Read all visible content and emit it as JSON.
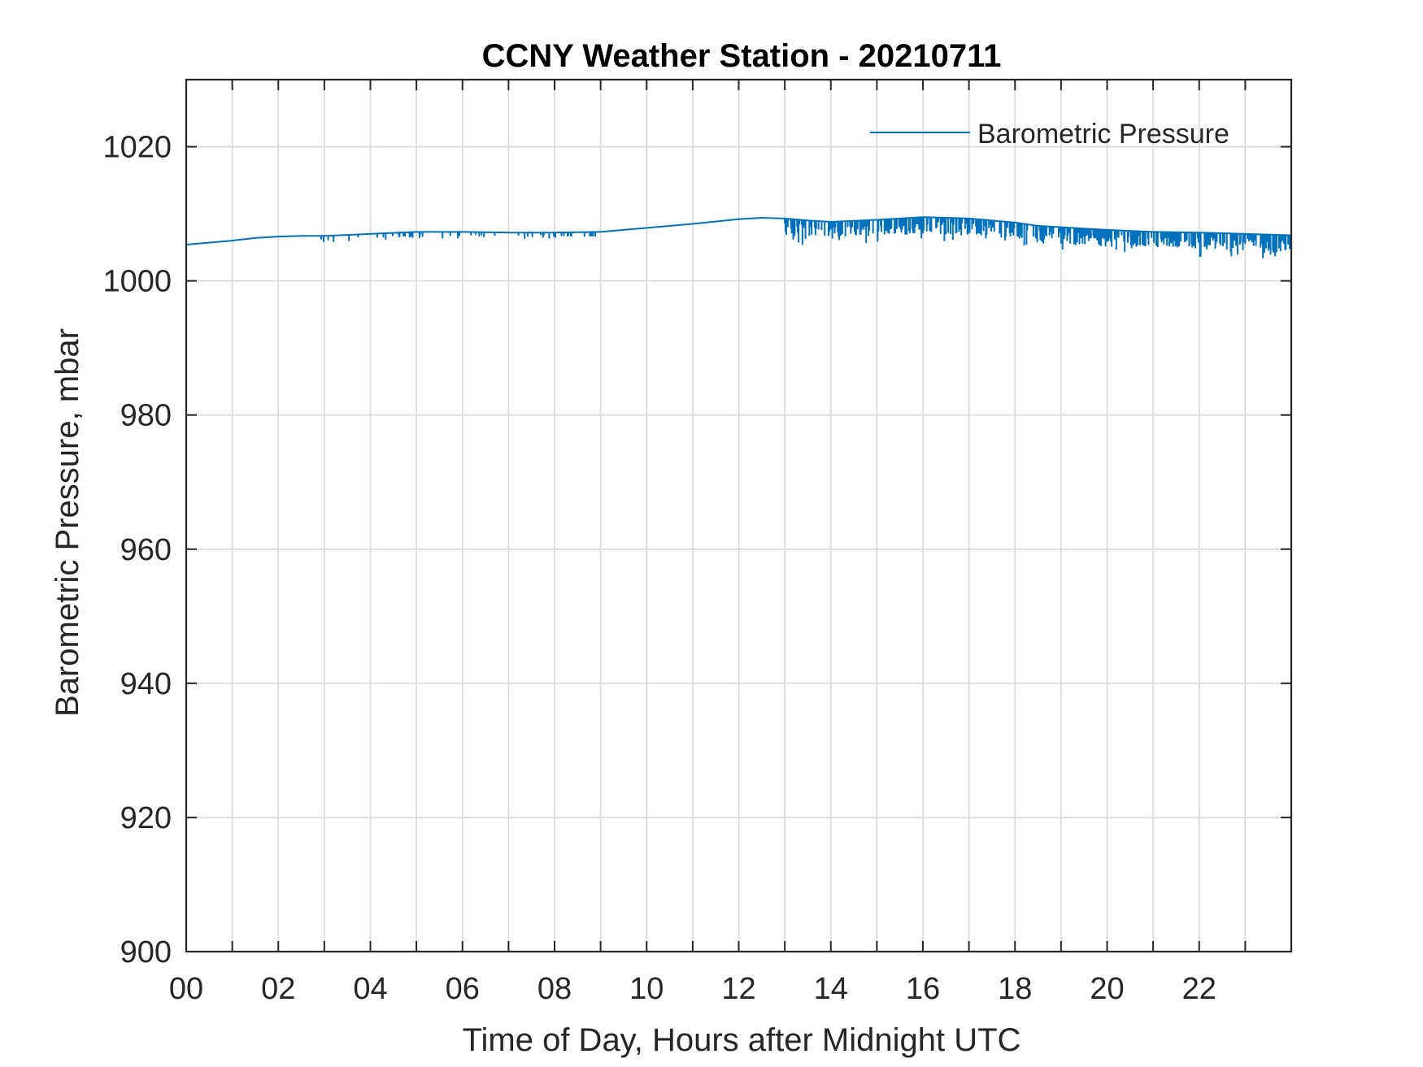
{
  "chart_data": {
    "type": "line",
    "title": "CCNY Weather Station - 20210711",
    "xlabel": "Time of Day, Hours after Midnight UTC",
    "ylabel": "Barometric Pressure, mbar",
    "xlim": [
      0,
      24
    ],
    "ylim": [
      900,
      1030
    ],
    "x_ticks": [
      0,
      2,
      4,
      6,
      8,
      10,
      12,
      14,
      16,
      18,
      20,
      22
    ],
    "x_tick_labels": [
      "00",
      "02",
      "04",
      "06",
      "08",
      "10",
      "12",
      "14",
      "16",
      "18",
      "20",
      "22"
    ],
    "x_minor_grid": [
      1,
      3,
      5,
      7,
      9,
      11,
      13,
      15,
      17,
      19,
      21,
      23
    ],
    "y_ticks": [
      900,
      920,
      940,
      960,
      980,
      1000,
      1020
    ],
    "y_tick_labels": [
      "900",
      "920",
      "940",
      "960",
      "980",
      "1000",
      "1020"
    ],
    "grid": true,
    "legend": {
      "entries": [
        "Barometric Pressure"
      ],
      "location": "top-right"
    },
    "series": [
      {
        "name": "Barometric Pressure",
        "color": "#0072bd",
        "x": [
          0,
          0.5,
          1.0,
          1.5,
          2.0,
          2.5,
          3.0,
          4.0,
          5.0,
          6.0,
          7.0,
          8.0,
          9.0,
          10.0,
          11.0,
          12.0,
          12.5,
          13.0,
          13.5,
          14.0,
          15.0,
          16.0,
          16.5,
          17.0,
          18.0,
          18.5,
          19.0,
          20.0,
          21.0,
          22.0,
          23.0,
          24.0
        ],
        "values": [
          1005.4,
          1005.7,
          1006.0,
          1006.4,
          1006.6,
          1006.7,
          1006.7,
          1007.0,
          1007.3,
          1007.3,
          1007.2,
          1007.2,
          1007.3,
          1007.9,
          1008.5,
          1009.2,
          1009.4,
          1009.3,
          1009.0,
          1008.8,
          1009.1,
          1009.5,
          1009.4,
          1009.3,
          1008.7,
          1008.2,
          1008.0,
          1007.6,
          1007.3,
          1007.2,
          1007.0,
          1006.8
        ],
        "dip_intervals": [
          [
            2.9,
            8.9
          ],
          [
            13.0,
            24.0
          ]
        ]
      }
    ]
  }
}
